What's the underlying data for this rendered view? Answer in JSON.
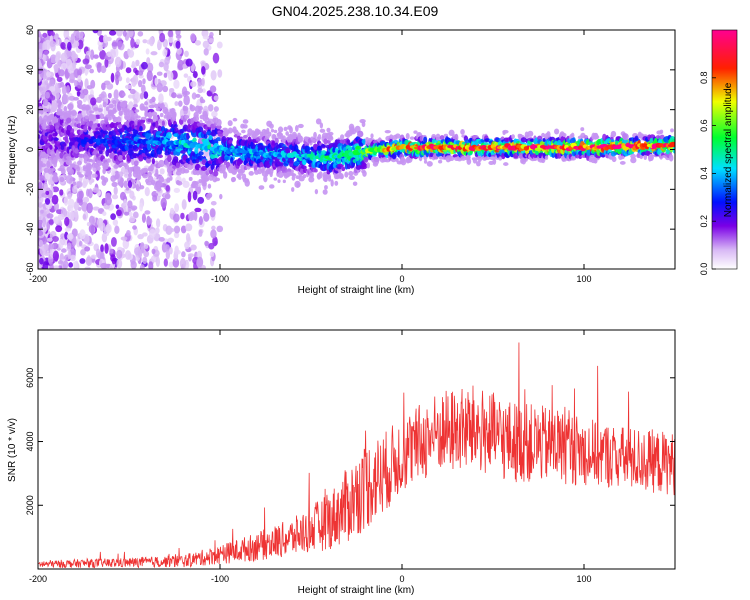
{
  "title": "GN04.2025.238.10.34.E09",
  "chart_data": [
    {
      "type": "heatmap",
      "xlabel": "Height of straight line (km)",
      "ylabel": "Frequency (Hz)",
      "xlim": [
        -200,
        150
      ],
      "ylim": [
        -60,
        60
      ],
      "xticks": [
        -200,
        -100,
        0,
        100
      ],
      "xtick_labels": [
        "-200",
        "-100",
        "0",
        "100"
      ],
      "yticks": [
        -60,
        -40,
        -20,
        0,
        20,
        40,
        60
      ],
      "ytick_labels": [
        "-60",
        "-40",
        "-20",
        "0",
        "20",
        "40",
        "60"
      ],
      "colorbar": {
        "label": "Normalized spectral amplitude",
        "range": [
          0.0,
          1.0
        ],
        "ticks": [
          0.0,
          0.2,
          0.4,
          0.6,
          0.8
        ],
        "tick_labels": [
          "0.0",
          "0.2",
          "0.4",
          "0.6",
          "0.8"
        ],
        "colors": [
          "#e8d8fa",
          "#7a00e6",
          "#0000ff",
          "#00ffff",
          "#00ff00",
          "#ffff00",
          "#ff0000",
          "#ff00aa"
        ]
      },
      "ridge": {
        "x": [
          -200,
          -180,
          -160,
          -140,
          -120,
          -100,
          -80,
          -60,
          -40,
          -20,
          0,
          20,
          50,
          100,
          150
        ],
        "center_hz": [
          5,
          5,
          4,
          4,
          3,
          0,
          -2,
          -3,
          -4,
          -1,
          1,
          1,
          1,
          1,
          2
        ],
        "peak_amplitude": [
          0.2,
          0.25,
          0.3,
          0.35,
          0.45,
          0.45,
          0.4,
          0.4,
          0.5,
          0.6,
          0.8,
          0.9,
          0.85,
          0.9,
          0.9
        ]
      }
    },
    {
      "type": "line",
      "xlabel": "Height of straight line (km)",
      "ylabel": "SNR (10 * v/v)",
      "xlim": [
        -200,
        150
      ],
      "ylim": [
        0,
        7500
      ],
      "xticks": [
        -200,
        -100,
        0,
        100
      ],
      "xtick_labels": [
        "-200",
        "-100",
        "0",
        "100"
      ],
      "yticks": [
        2000,
        4000,
        6000
      ],
      "ytick_labels": [
        "2000",
        "4000",
        "6000"
      ],
      "series": [
        {
          "name": "SNR",
          "color": "#ee3333",
          "envelope_x": [
            -200,
            -150,
            -120,
            -100,
            -80,
            -60,
            -40,
            -30,
            -20,
            -10,
            0,
            20,
            40,
            60,
            80,
            100,
            120,
            150
          ],
          "envelope_y": [
            150,
            200,
            250,
            450,
            700,
            1000,
            1500,
            2000,
            2600,
            3000,
            3600,
            4300,
            4400,
            4000,
            3900,
            3700,
            3500,
            3300
          ],
          "spread": [
            120,
            150,
            200,
            300,
            450,
            600,
            900,
            1200,
            1400,
            1300,
            1200,
            1300,
            1400,
            1300,
            1200,
            1100,
            1000,
            1000
          ]
        }
      ]
    }
  ]
}
